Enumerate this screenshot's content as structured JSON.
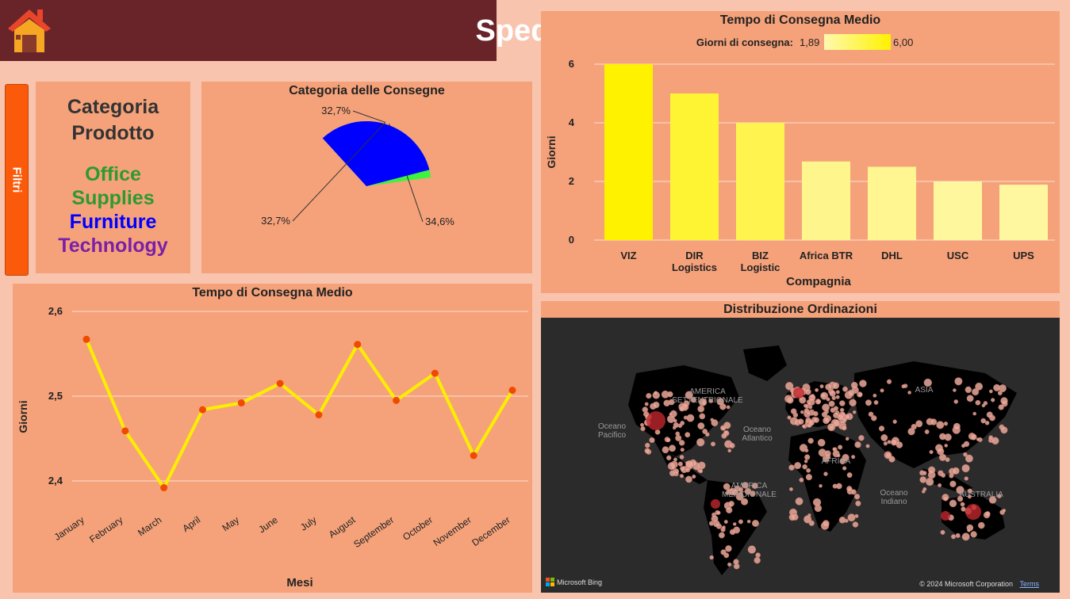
{
  "header": {
    "title": "Spedizioni"
  },
  "filters": {
    "label": "Filtri"
  },
  "category_panel": {
    "heading": "Categoria Prodotto",
    "items": [
      {
        "label": "Office Supplies",
        "color": "#2e9a2e"
      },
      {
        "label": "Furniture",
        "color": "#0000ff"
      },
      {
        "label": "Technology",
        "color": "#7a1fa8"
      }
    ]
  },
  "chart_data": [
    {
      "type": "pie",
      "title": "Categoria delle Consegne",
      "slices": [
        {
          "label": "32,7%",
          "value": 32.7,
          "color": "#6a1bb3"
        },
        {
          "label": "34,6%",
          "value": 34.6,
          "color": "#3ef23e"
        },
        {
          "label": "32,7%",
          "value": 32.7,
          "color": "#0000ff"
        }
      ]
    },
    {
      "type": "bar",
      "title": "Tempo di Consegna Medio",
      "legend_label": "Giorni di consegna:",
      "legend_min": "1,89",
      "legend_max": "6,00",
      "xlabel": "Compagnia",
      "ylabel": "Giorni",
      "ylim": [
        0,
        6
      ],
      "yticks": [
        "0",
        "2",
        "4",
        "6"
      ],
      "categories": [
        "VIZ",
        "DIR Logistics",
        "BIZ Logistic",
        "Africa BTR",
        "DHL",
        "USC",
        "UPS"
      ],
      "values": [
        6.0,
        5.0,
        4.0,
        2.68,
        2.5,
        2.0,
        1.89
      ],
      "colors": [
        "#fff200",
        "#fff433",
        "#fff44f",
        "#fff58d",
        "#fff692",
        "#fff79d",
        "#fff79f"
      ]
    },
    {
      "type": "line",
      "title": "Tempo di Consegna Medio",
      "xlabel": "Mesi",
      "ylabel": "Giorni",
      "ylim": [
        2.4,
        2.6
      ],
      "yticks": [
        "2,4",
        "2,5",
        "2,6"
      ],
      "categories": [
        "January",
        "February",
        "March",
        "April",
        "May",
        "June",
        "July",
        "August",
        "September",
        "October",
        "November",
        "December"
      ],
      "values": [
        2.567,
        2.459,
        2.392,
        2.484,
        2.492,
        2.515,
        2.478,
        2.561,
        2.495,
        2.527,
        2.43,
        2.507
      ],
      "line_color": "#ffee00",
      "marker_color": "#f04a00"
    }
  ],
  "map": {
    "title": "Distribuzione Ordinazioni",
    "labels": [
      "AMERICA SETTENTRIONALE",
      "Oceano Pacifico",
      "Oceano Atlantico",
      "ASIA",
      "AFRICA",
      "AMERICA MERIDIONALE",
      "Oceano Indiano",
      "AUSTRALIA"
    ],
    "brand": "Microsoft Bing",
    "copyright": "© 2024 Microsoft Corporation",
    "terms": "Terms"
  }
}
